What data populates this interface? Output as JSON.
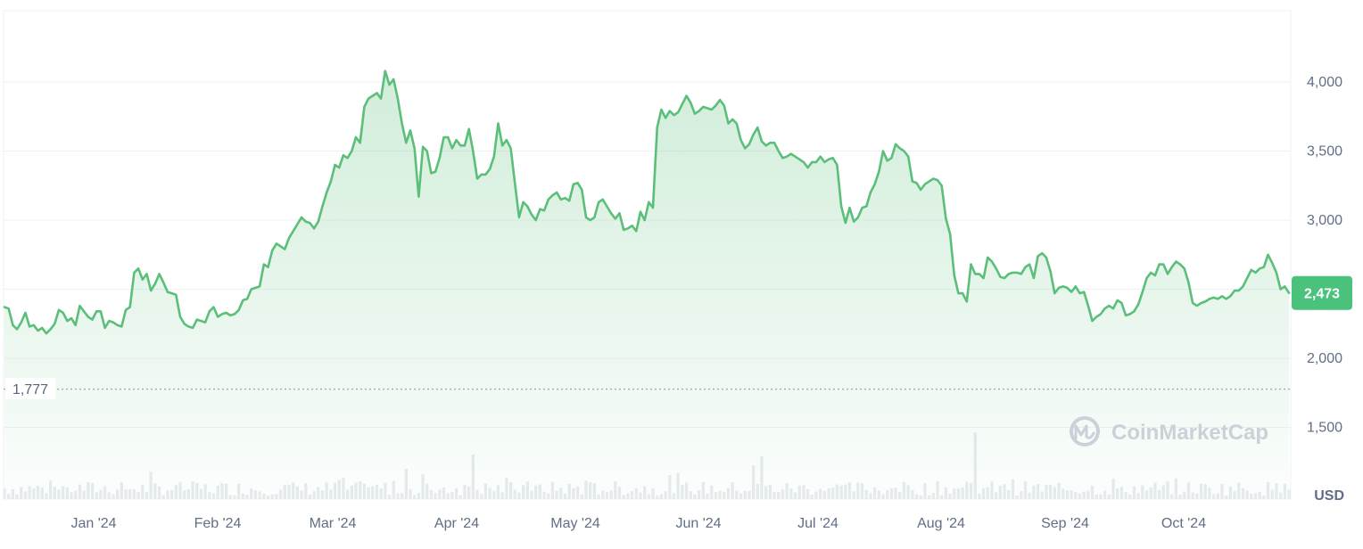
{
  "chart_data": {
    "type": "area",
    "currency": "USD",
    "ylim": [
      1000,
      4500
    ],
    "y_ticks": [
      "4,000",
      "3,500",
      "3,000",
      "2,000",
      "1,500"
    ],
    "y_tick_values": [
      4000,
      3500,
      3000,
      2000,
      1500
    ],
    "x_ticks": [
      "Jan '24",
      "Feb '24",
      "Mar '24",
      "Apr '24",
      "May '24",
      "Jun '24",
      "Jul '24",
      "Aug '24",
      "Sep '24",
      "Oct '24"
    ],
    "reference_line": {
      "value": 1777,
      "label": "1,777"
    },
    "current_value": {
      "value": 2473,
      "label": "2,473"
    },
    "watermark": "CoinMarketCap",
    "colors": {
      "line": "#5bbf7a",
      "badge": "#4bc27c",
      "reference": "#a6b0c3",
      "volume": "#e8ebef"
    },
    "grid": true,
    "series": [
      {
        "values": [
          2370,
          2360,
          2240,
          2210,
          2260,
          2330,
          2230,
          2240,
          2200,
          2220,
          2180,
          2210,
          2250,
          2350,
          2330,
          2270,
          2290,
          2240,
          2380,
          2340,
          2300,
          2280,
          2340,
          2340,
          2220,
          2270,
          2260,
          2240,
          2230,
          2350,
          2370,
          2620,
          2650,
          2570,
          2610,
          2490,
          2540,
          2610,
          2550,
          2480,
          2470,
          2460,
          2300,
          2250,
          2230,
          2220,
          2280,
          2270,
          2260,
          2340,
          2370,
          2300,
          2320,
          2330,
          2310,
          2320,
          2350,
          2420,
          2430,
          2500,
          2510,
          2520,
          2680,
          2660,
          2780,
          2830,
          2810,
          2790,
          2870,
          2920,
          2970,
          3020,
          2990,
          2980,
          2940,
          2990,
          3100,
          3200,
          3280,
          3400,
          3380,
          3470,
          3450,
          3500,
          3600,
          3560,
          3820,
          3880,
          3900,
          3920,
          3880,
          4080,
          3980,
          4020,
          3880,
          3700,
          3560,
          3650,
          3520,
          3170,
          3530,
          3500,
          3340,
          3350,
          3450,
          3600,
          3600,
          3520,
          3580,
          3540,
          3540,
          3660,
          3500,
          3300,
          3330,
          3330,
          3370,
          3460,
          3700,
          3540,
          3580,
          3520,
          3270,
          3020,
          3130,
          3100,
          3040,
          3000,
          3080,
          3070,
          3150,
          3180,
          3200,
          3150,
          3160,
          3140,
          3260,
          3270,
          3220,
          3020,
          3000,
          3020,
          3130,
          3150,
          3100,
          3050,
          3010,
          3050,
          2930,
          2940,
          2960,
          2920,
          3060,
          3000,
          3130,
          3090,
          3670,
          3800,
          3740,
          3790,
          3760,
          3780,
          3840,
          3900,
          3850,
          3770,
          3790,
          3820,
          3810,
          3800,
          3830,
          3870,
          3830,
          3700,
          3730,
          3700,
          3580,
          3520,
          3550,
          3620,
          3670,
          3570,
          3540,
          3560,
          3560,
          3500,
          3450,
          3460,
          3480,
          3460,
          3440,
          3420,
          3380,
          3420,
          3420,
          3460,
          3420,
          3440,
          3450,
          3400,
          3100,
          2980,
          3090,
          2990,
          3020,
          3090,
          3100,
          3200,
          3260,
          3350,
          3500,
          3430,
          3450,
          3550,
          3520,
          3500,
          3460,
          3280,
          3270,
          3220,
          3260,
          3280,
          3300,
          3290,
          3250,
          3010,
          2900,
          2600,
          2470,
          2470,
          2410,
          2680,
          2610,
          2610,
          2580,
          2730,
          2700,
          2650,
          2590,
          2580,
          2610,
          2620,
          2620,
          2610,
          2660,
          2680,
          2580,
          2740,
          2760,
          2730,
          2630,
          2470,
          2510,
          2520,
          2510,
          2480,
          2520,
          2470,
          2480,
          2380,
          2270,
          2300,
          2320,
          2360,
          2380,
          2360,
          2420,
          2400,
          2310,
          2320,
          2340,
          2390,
          2480,
          2580,
          2620,
          2600,
          2680,
          2680,
          2610,
          2660,
          2700,
          2680,
          2650,
          2550,
          2400,
          2380,
          2400,
          2410,
          2430,
          2440,
          2430,
          2450,
          2430,
          2450,
          2490,
          2490,
          2520,
          2580,
          2640,
          2620,
          2650,
          2660,
          2750,
          2690,
          2620,
          2500,
          2520,
          2473
        ]
      }
    ]
  }
}
